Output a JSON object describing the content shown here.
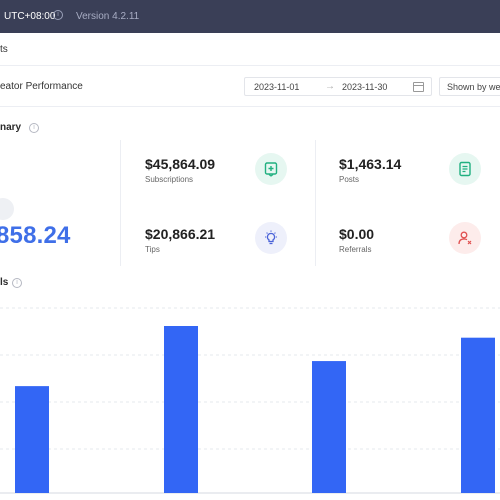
{
  "topbar": {
    "timezone": "UTC+08:00",
    "info_glyph": "i",
    "version": "Version 4.2.11"
  },
  "tabs": {
    "active": "ts"
  },
  "performance": {
    "title": "eator Performance",
    "date_from": "2023-11-01",
    "arrow": "→",
    "date_to": "2023-11-30",
    "grouping": "Shown by week"
  },
  "summary": {
    "title": "nary",
    "info_glyph": "i",
    "total": "858.24",
    "cards": [
      {
        "value": "$45,864.09",
        "label": "Subscriptions",
        "icon": "subscription-icon",
        "color": "#e6f7f1"
      },
      {
        "value": "$1,463.14",
        "label": "Posts",
        "icon": "posts-icon",
        "color": "#e6f7f1"
      },
      {
        "value": "$20,866.21",
        "label": "Tips",
        "icon": "tips-icon",
        "color": "#eef0fb"
      },
      {
        "value": "$0.00",
        "label": "Referrals",
        "icon": "referrals-icon",
        "color": "#fdeceb"
      }
    ]
  },
  "details": {
    "title": "ls",
    "info_glyph": "i"
  },
  "chart_data": {
    "type": "bar",
    "categories": [
      "",
      "",
      "",
      ""
    ],
    "values": [
      0.64,
      1.0,
      0.79,
      0.93
    ],
    "bar_color": "#3366f5",
    "grid": true
  },
  "colors": {
    "accent": "#3f6fe8",
    "topbar": "#3a3f57",
    "green": "#20b080",
    "indigo": "#4b63d8",
    "red": "#e05050"
  }
}
